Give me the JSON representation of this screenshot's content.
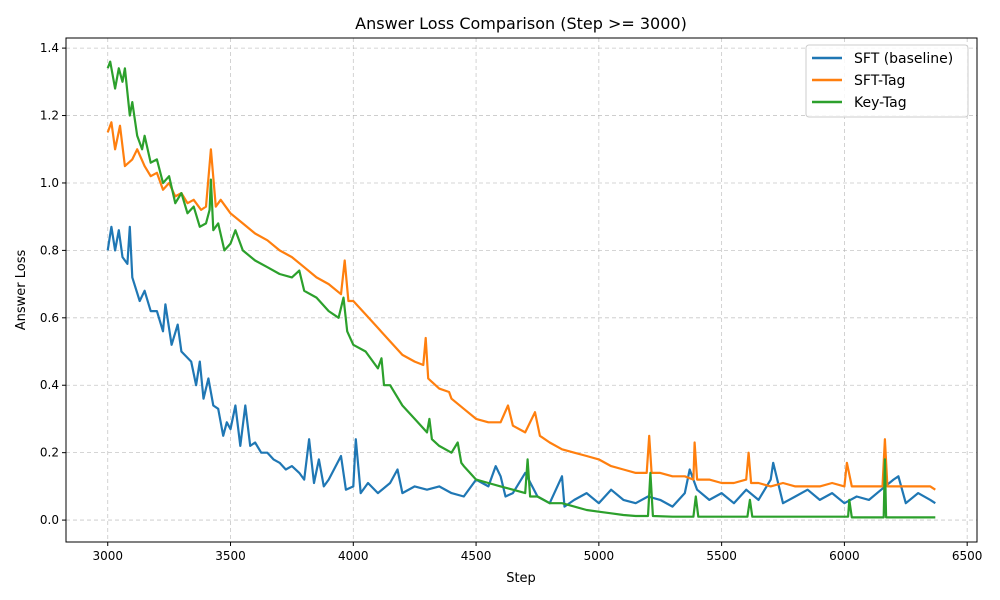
{
  "chart_data": {
    "type": "line",
    "title": "Answer Loss Comparison (Step >= 3000)",
    "xlabel": "Step",
    "ylabel": "Answer Loss",
    "xlim": [
      2830,
      6540
    ],
    "ylim": [
      -0.065,
      1.43
    ],
    "xticks": [
      3000,
      3500,
      4000,
      4500,
      5000,
      5500,
      6000,
      6500
    ],
    "yticks": [
      0.0,
      0.2,
      0.4,
      0.6,
      0.8,
      1.0,
      1.2,
      1.4
    ],
    "grid": true,
    "legend_placement": "top-right",
    "series": [
      {
        "name": "SFT (baseline)",
        "color": "#1f77b4",
        "points": [
          [
            3000,
            0.8
          ],
          [
            3015,
            0.87
          ],
          [
            3030,
            0.8
          ],
          [
            3045,
            0.86
          ],
          [
            3060,
            0.78
          ],
          [
            3080,
            0.76
          ],
          [
            3090,
            0.87
          ],
          [
            3100,
            0.72
          ],
          [
            3130,
            0.65
          ],
          [
            3150,
            0.68
          ],
          [
            3175,
            0.62
          ],
          [
            3200,
            0.62
          ],
          [
            3225,
            0.56
          ],
          [
            3235,
            0.64
          ],
          [
            3260,
            0.52
          ],
          [
            3285,
            0.58
          ],
          [
            3300,
            0.5
          ],
          [
            3340,
            0.47
          ],
          [
            3360,
            0.4
          ],
          [
            3375,
            0.47
          ],
          [
            3390,
            0.36
          ],
          [
            3410,
            0.42
          ],
          [
            3430,
            0.34
          ],
          [
            3450,
            0.33
          ],
          [
            3470,
            0.25
          ],
          [
            3485,
            0.29
          ],
          [
            3500,
            0.27
          ],
          [
            3520,
            0.34
          ],
          [
            3540,
            0.22
          ],
          [
            3560,
            0.34
          ],
          [
            3580,
            0.22
          ],
          [
            3600,
            0.23
          ],
          [
            3625,
            0.2
          ],
          [
            3650,
            0.2
          ],
          [
            3675,
            0.18
          ],
          [
            3700,
            0.17
          ],
          [
            3725,
            0.15
          ],
          [
            3750,
            0.16
          ],
          [
            3780,
            0.14
          ],
          [
            3800,
            0.12
          ],
          [
            3820,
            0.24
          ],
          [
            3840,
            0.11
          ],
          [
            3860,
            0.18
          ],
          [
            3880,
            0.1
          ],
          [
            3900,
            0.12
          ],
          [
            3950,
            0.19
          ],
          [
            3970,
            0.09
          ],
          [
            4000,
            0.1
          ],
          [
            4010,
            0.24
          ],
          [
            4030,
            0.08
          ],
          [
            4060,
            0.11
          ],
          [
            4100,
            0.08
          ],
          [
            4150,
            0.11
          ],
          [
            4180,
            0.15
          ],
          [
            4200,
            0.08
          ],
          [
            4250,
            0.1
          ],
          [
            4300,
            0.09
          ],
          [
            4350,
            0.1
          ],
          [
            4400,
            0.08
          ],
          [
            4450,
            0.07
          ],
          [
            4500,
            0.12
          ],
          [
            4550,
            0.1
          ],
          [
            4580,
            0.16
          ],
          [
            4600,
            0.13
          ],
          [
            4620,
            0.07
          ],
          [
            4650,
            0.08
          ],
          [
            4700,
            0.14
          ],
          [
            4750,
            0.07
          ],
          [
            4800,
            0.05
          ],
          [
            4850,
            0.13
          ],
          [
            4860,
            0.04
          ],
          [
            4900,
            0.06
          ],
          [
            4950,
            0.08
          ],
          [
            5000,
            0.05
          ],
          [
            5050,
            0.09
          ],
          [
            5100,
            0.06
          ],
          [
            5150,
            0.05
          ],
          [
            5200,
            0.07
          ],
          [
            5250,
            0.06
          ],
          [
            5300,
            0.04
          ],
          [
            5350,
            0.08
          ],
          [
            5370,
            0.15
          ],
          [
            5400,
            0.09
          ],
          [
            5450,
            0.06
          ],
          [
            5500,
            0.08
          ],
          [
            5550,
            0.05
          ],
          [
            5600,
            0.09
          ],
          [
            5650,
            0.06
          ],
          [
            5700,
            0.12
          ],
          [
            5710,
            0.17
          ],
          [
            5750,
            0.05
          ],
          [
            5800,
            0.07
          ],
          [
            5850,
            0.09
          ],
          [
            5900,
            0.06
          ],
          [
            5950,
            0.08
          ],
          [
            6000,
            0.05
          ],
          [
            6050,
            0.07
          ],
          [
            6100,
            0.06
          ],
          [
            6150,
            0.09
          ],
          [
            6200,
            0.12
          ],
          [
            6220,
            0.13
          ],
          [
            6250,
            0.05
          ],
          [
            6300,
            0.08
          ],
          [
            6350,
            0.06
          ],
          [
            6370,
            0.05
          ]
        ]
      },
      {
        "name": "SFT-Tag",
        "color": "#ff7f0e",
        "points": [
          [
            3000,
            1.15
          ],
          [
            3015,
            1.18
          ],
          [
            3030,
            1.1
          ],
          [
            3050,
            1.17
          ],
          [
            3070,
            1.05
          ],
          [
            3100,
            1.07
          ],
          [
            3120,
            1.1
          ],
          [
            3150,
            1.05
          ],
          [
            3175,
            1.02
          ],
          [
            3200,
            1.03
          ],
          [
            3225,
            0.98
          ],
          [
            3250,
            1.0
          ],
          [
            3275,
            0.96
          ],
          [
            3300,
            0.97
          ],
          [
            3325,
            0.94
          ],
          [
            3350,
            0.95
          ],
          [
            3380,
            0.92
          ],
          [
            3400,
            0.93
          ],
          [
            3420,
            1.1
          ],
          [
            3440,
            0.93
          ],
          [
            3460,
            0.95
          ],
          [
            3500,
            0.91
          ],
          [
            3550,
            0.88
          ],
          [
            3600,
            0.85
          ],
          [
            3650,
            0.83
          ],
          [
            3700,
            0.8
          ],
          [
            3750,
            0.78
          ],
          [
            3800,
            0.75
          ],
          [
            3850,
            0.72
          ],
          [
            3900,
            0.7
          ],
          [
            3950,
            0.67
          ],
          [
            3965,
            0.77
          ],
          [
            3980,
            0.65
          ],
          [
            4000,
            0.65
          ],
          [
            4050,
            0.61
          ],
          [
            4100,
            0.57
          ],
          [
            4150,
            0.53
          ],
          [
            4200,
            0.49
          ],
          [
            4250,
            0.47
          ],
          [
            4285,
            0.46
          ],
          [
            4295,
            0.54
          ],
          [
            4305,
            0.42
          ],
          [
            4350,
            0.39
          ],
          [
            4390,
            0.38
          ],
          [
            4400,
            0.36
          ],
          [
            4450,
            0.33
          ],
          [
            4500,
            0.3
          ],
          [
            4550,
            0.29
          ],
          [
            4600,
            0.29
          ],
          [
            4630,
            0.34
          ],
          [
            4650,
            0.28
          ],
          [
            4700,
            0.26
          ],
          [
            4740,
            0.32
          ],
          [
            4760,
            0.25
          ],
          [
            4800,
            0.23
          ],
          [
            4850,
            0.21
          ],
          [
            4900,
            0.2
          ],
          [
            4950,
            0.19
          ],
          [
            5000,
            0.18
          ],
          [
            5050,
            0.16
          ],
          [
            5100,
            0.15
          ],
          [
            5150,
            0.14
          ],
          [
            5195,
            0.14
          ],
          [
            5205,
            0.25
          ],
          [
            5215,
            0.14
          ],
          [
            5250,
            0.14
          ],
          [
            5300,
            0.13
          ],
          [
            5350,
            0.13
          ],
          [
            5385,
            0.12
          ],
          [
            5390,
            0.23
          ],
          [
            5400,
            0.12
          ],
          [
            5450,
            0.12
          ],
          [
            5500,
            0.11
          ],
          [
            5550,
            0.11
          ],
          [
            5600,
            0.12
          ],
          [
            5610,
            0.2
          ],
          [
            5620,
            0.11
          ],
          [
            5650,
            0.11
          ],
          [
            5700,
            0.1
          ],
          [
            5750,
            0.11
          ],
          [
            5800,
            0.1
          ],
          [
            5850,
            0.1
          ],
          [
            5900,
            0.1
          ],
          [
            5950,
            0.11
          ],
          [
            6000,
            0.1
          ],
          [
            6010,
            0.17
          ],
          [
            6030,
            0.1
          ],
          [
            6100,
            0.1
          ],
          [
            6155,
            0.1
          ],
          [
            6165,
            0.24
          ],
          [
            6175,
            0.1
          ],
          [
            6250,
            0.1
          ],
          [
            6300,
            0.1
          ],
          [
            6350,
            0.1
          ],
          [
            6370,
            0.09
          ]
        ]
      },
      {
        "name": "Key-Tag",
        "color": "#2ca02c",
        "points": [
          [
            3000,
            1.34
          ],
          [
            3010,
            1.36
          ],
          [
            3030,
            1.28
          ],
          [
            3045,
            1.34
          ],
          [
            3060,
            1.3
          ],
          [
            3070,
            1.34
          ],
          [
            3090,
            1.2
          ],
          [
            3100,
            1.24
          ],
          [
            3120,
            1.14
          ],
          [
            3140,
            1.1
          ],
          [
            3150,
            1.14
          ],
          [
            3175,
            1.06
          ],
          [
            3200,
            1.07
          ],
          [
            3225,
            1.0
          ],
          [
            3250,
            1.02
          ],
          [
            3275,
            0.94
          ],
          [
            3300,
            0.97
          ],
          [
            3325,
            0.91
          ],
          [
            3350,
            0.93
          ],
          [
            3375,
            0.87
          ],
          [
            3400,
            0.88
          ],
          [
            3415,
            0.92
          ],
          [
            3420,
            1.01
          ],
          [
            3430,
            0.86
          ],
          [
            3450,
            0.88
          ],
          [
            3475,
            0.8
          ],
          [
            3500,
            0.82
          ],
          [
            3520,
            0.86
          ],
          [
            3550,
            0.8
          ],
          [
            3600,
            0.77
          ],
          [
            3650,
            0.75
          ],
          [
            3700,
            0.73
          ],
          [
            3750,
            0.72
          ],
          [
            3780,
            0.74
          ],
          [
            3800,
            0.68
          ],
          [
            3850,
            0.66
          ],
          [
            3900,
            0.62
          ],
          [
            3940,
            0.6
          ],
          [
            3960,
            0.66
          ],
          [
            3975,
            0.56
          ],
          [
            4000,
            0.52
          ],
          [
            4050,
            0.5
          ],
          [
            4100,
            0.45
          ],
          [
            4115,
            0.48
          ],
          [
            4125,
            0.4
          ],
          [
            4150,
            0.4
          ],
          [
            4200,
            0.34
          ],
          [
            4250,
            0.3
          ],
          [
            4300,
            0.26
          ],
          [
            4310,
            0.3
          ],
          [
            4320,
            0.24
          ],
          [
            4350,
            0.22
          ],
          [
            4400,
            0.2
          ],
          [
            4425,
            0.23
          ],
          [
            4440,
            0.17
          ],
          [
            4450,
            0.16
          ],
          [
            4500,
            0.12
          ],
          [
            4550,
            0.11
          ],
          [
            4600,
            0.1
          ],
          [
            4650,
            0.09
          ],
          [
            4700,
            0.08
          ],
          [
            4710,
            0.18
          ],
          [
            4720,
            0.07
          ],
          [
            4750,
            0.07
          ],
          [
            4800,
            0.05
          ],
          [
            4850,
            0.05
          ],
          [
            4900,
            0.04
          ],
          [
            4950,
            0.03
          ],
          [
            5000,
            0.025
          ],
          [
            5050,
            0.02
          ],
          [
            5100,
            0.015
          ],
          [
            5150,
            0.012
          ],
          [
            5200,
            0.012
          ],
          [
            5210,
            0.14
          ],
          [
            5220,
            0.012
          ],
          [
            5300,
            0.01
          ],
          [
            5385,
            0.01
          ],
          [
            5395,
            0.07
          ],
          [
            5405,
            0.01
          ],
          [
            5500,
            0.01
          ],
          [
            5605,
            0.01
          ],
          [
            5615,
            0.06
          ],
          [
            5625,
            0.01
          ],
          [
            5800,
            0.01
          ],
          [
            6015,
            0.01
          ],
          [
            6020,
            0.06
          ],
          [
            6030,
            0.008
          ],
          [
            6160,
            0.008
          ],
          [
            6165,
            0.18
          ],
          [
            6170,
            0.008
          ],
          [
            6370,
            0.008
          ]
        ]
      }
    ]
  }
}
